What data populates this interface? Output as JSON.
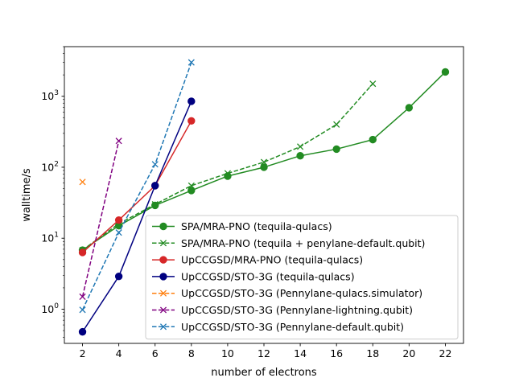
{
  "chart_data": {
    "type": "line",
    "xlabel": "number of electrons",
    "ylabel": "walltime/s",
    "yscale": "log",
    "xlim": [
      1,
      23
    ],
    "ylim": [
      0.33,
      5000
    ],
    "xticks": [
      2,
      4,
      6,
      8,
      10,
      12,
      14,
      16,
      18,
      20,
      22
    ],
    "yticks": [
      1,
      10,
      100,
      1000
    ],
    "ytick_labels": [
      [
        "10",
        "0"
      ],
      [
        "10",
        "1"
      ],
      [
        "10",
        "2"
      ],
      [
        "10",
        "3"
      ]
    ],
    "legend_position": "lower-right",
    "grid": false,
    "series": [
      {
        "name": "SPA/MRA-PNO (tequila-qulacs)",
        "color": "#228b22",
        "linestyle": "solid",
        "marker": "circle",
        "x": [
          2,
          4,
          6,
          8,
          10,
          12,
          14,
          16,
          18,
          20,
          22
        ],
        "y": [
          6.8,
          15,
          29,
          47,
          75,
          100,
          145,
          180,
          245,
          690,
          2200
        ]
      },
      {
        "name": "SPA/MRA-PNO (tequila + penylane-default.qubit)",
        "color": "#228b22",
        "linestyle": "dashed",
        "marker": "x",
        "x": [
          2,
          4,
          6,
          8,
          10,
          12,
          14,
          16,
          18
        ],
        "y": [
          6.8,
          16,
          30,
          55,
          82,
          118,
          195,
          400,
          1500
        ]
      },
      {
        "name": "UpCCGSD/MRA-PNO (tequila-qulacs)",
        "color": "#d62728",
        "linestyle": "solid",
        "marker": "circle",
        "x": [
          2,
          4,
          6,
          8
        ],
        "y": [
          6.3,
          18,
          55,
          450
        ]
      },
      {
        "name": "UpCCGSD/STO-3G (tequila-qulacs)",
        "color": "#000080",
        "linestyle": "solid",
        "marker": "circle",
        "x": [
          2,
          4,
          6,
          8
        ],
        "y": [
          0.48,
          2.9,
          55,
          850
        ]
      },
      {
        "name": "UpCCGSD/STO-3G (Pennylane-qulacs.simulator)",
        "color": "#ff7f0e",
        "linestyle": "dashed",
        "marker": "x",
        "x": [
          2
        ],
        "y": [
          62
        ]
      },
      {
        "name": "UpCCGSD/STO-3G (Pennylane-lightning.qubit)",
        "color": "#800080",
        "linestyle": "dashed",
        "marker": "x",
        "x": [
          2,
          4
        ],
        "y": [
          1.5,
          235
        ]
      },
      {
        "name": "UpCCGSD/STO-3G (Pennylane-default.qubit)",
        "color": "#1f77b4",
        "linestyle": "dashed",
        "marker": "x",
        "x": [
          2,
          4,
          6,
          8
        ],
        "y": [
          0.98,
          12,
          110,
          3000
        ]
      }
    ]
  }
}
